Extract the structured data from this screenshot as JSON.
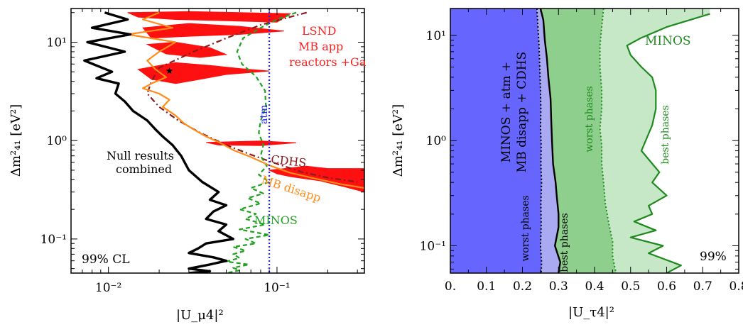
{
  "chart_data": [
    {
      "type": "line",
      "xlabel": "|U_μ4|²",
      "ylabel": "Δm²₄₁ [eV²]",
      "xscale": "log",
      "yscale": "log",
      "xlim": [
        0.006,
        0.33
      ],
      "ylim": [
        0.045,
        22
      ],
      "x_ticks": [
        {
          "v": 0.01,
          "label": "10⁻²"
        },
        {
          "v": 0.1,
          "label": "10⁻¹"
        }
      ],
      "y_ticks": [
        {
          "v": 0.1,
          "label": "10⁻¹"
        },
        {
          "v": 1,
          "label": "10⁰"
        },
        {
          "v": 10,
          "label": "10¹"
        }
      ],
      "cl_label": "99% CL",
      "annotations": {
        "lsnd": [
          "LSND",
          "MB app",
          "reactors +Ga"
        ],
        "null": [
          "Null results",
          "combined"
        ],
        "cdhs": "CDHS",
        "mb_disapp": "MB disapp",
        "minos": "MINOS",
        "atm": "atm"
      },
      "colors": {
        "null": "#000000",
        "mb_disapp": "#ff8c1a",
        "cdhs": "#8b1a1a",
        "minos": "#22a022",
        "atm": "#2222ff",
        "lsnd": "#ff1010"
      },
      "series": [
        {
          "key": "null",
          "x": [
            0.0095,
            0.013,
            0.008,
            0.0135,
            0.0075,
            0.0125,
            0.0072,
            0.0105,
            0.0085,
            0.0115,
            0.011,
            0.0125,
            0.014,
            0.017,
            0.019,
            0.021,
            0.024,
            0.027,
            0.03,
            0.036,
            0.045,
            0.04,
            0.05,
            0.042,
            0.038,
            0.05,
            0.045,
            0.055,
            0.038,
            0.034,
            0.03,
            0.042,
            0.05,
            0.04,
            0.03,
            0.04,
            0.03
          ],
          "y": [
            20,
            17,
            14,
            12,
            10,
            8,
            6.5,
            5,
            4.3,
            3.8,
            3,
            2.5,
            2,
            1.6,
            1.3,
            1.1,
            0.9,
            0.7,
            0.5,
            0.38,
            0.3,
            0.25,
            0.22,
            0.19,
            0.16,
            0.14,
            0.12,
            0.1,
            0.09,
            0.08,
            0.072,
            0.065,
            0.06,
            0.055,
            0.05,
            0.047,
            0.045
          ]
        },
        {
          "key": "mb_disapp",
          "x": [
            0.02,
            0.016,
            0.024,
            0.013,
            0.025,
            0.02,
            0.017,
            0.019,
            0.022,
            0.018,
            0.016,
            0.02,
            0.023,
            0.021,
            0.025,
            0.028,
            0.032,
            0.038,
            0.046,
            0.055,
            0.07,
            0.09,
            0.12,
            0.17,
            0.24,
            0.33
          ],
          "y": [
            20,
            17,
            14,
            12,
            10,
            8,
            6.5,
            5.3,
            4.4,
            3.8,
            3.4,
            3,
            2.6,
            2.2,
            1.8,
            1.5,
            1.3,
            1.1,
            0.95,
            0.8,
            0.68,
            0.56,
            0.47,
            0.41,
            0.36,
            0.33
          ]
        },
        {
          "key": "cdhs",
          "x": [
            0.15,
            0.08,
            0.05,
            0.032,
            0.02,
            0.018,
            0.017,
            0.02,
            0.026,
            0.035,
            0.05,
            0.07,
            0.1,
            0.14,
            0.2,
            0.3
          ],
          "y": [
            20,
            15,
            11,
            8,
            5.5,
            4,
            3,
            2.2,
            1.6,
            1.2,
            0.9,
            0.72,
            0.58,
            0.48,
            0.42,
            0.38
          ]
        },
        {
          "key": "minos",
          "x": [
            0.13,
            0.1,
            0.08,
            0.063,
            0.058,
            0.062,
            0.075,
            0.085,
            0.086,
            0.08,
            0.078,
            0.083,
            0.08,
            0.087,
            0.078,
            0.09,
            0.07,
            0.083,
            0.067,
            0.08,
            0.06,
            0.075,
            0.065,
            0.085,
            0.06,
            0.09,
            0.065,
            0.075,
            0.055,
            0.065,
            0.055,
            0.06,
            0.05,
            0.068,
            0.055,
            0.06,
            0.05
          ],
          "y": [
            20,
            17,
            14,
            11,
            8,
            6,
            4.5,
            3.2,
            2.2,
            1.6,
            1.2,
            0.9,
            0.7,
            0.55,
            0.45,
            0.38,
            0.33,
            0.29,
            0.26,
            0.23,
            0.2,
            0.18,
            0.16,
            0.14,
            0.125,
            0.11,
            0.1,
            0.09,
            0.083,
            0.076,
            0.07,
            0.064,
            0.059,
            0.055,
            0.051,
            0.048,
            0.045
          ]
        },
        {
          "key": "atm",
          "x": [
            0.09,
            0.09
          ],
          "y": [
            22,
            0.045
          ]
        }
      ],
      "lsnd_regions": [
        [
          [
            0.013,
            20
          ],
          [
            0.03,
            20.5
          ],
          [
            0.06,
            20
          ],
          [
            0.12,
            19.5
          ],
          [
            0.1,
            16
          ],
          [
            0.05,
            16.5
          ],
          [
            0.025,
            17
          ],
          [
            0.015,
            18
          ]
        ],
        [
          [
            0.016,
            14
          ],
          [
            0.03,
            15.5
          ],
          [
            0.06,
            14.5
          ],
          [
            0.11,
            13
          ],
          [
            0.06,
            12
          ],
          [
            0.03,
            11.5
          ],
          [
            0.018,
            11
          ]
        ],
        [
          [
            0.017,
            9.5
          ],
          [
            0.025,
            10
          ],
          [
            0.04,
            8.8
          ],
          [
            0.05,
            7.5
          ],
          [
            0.035,
            7
          ],
          [
            0.022,
            7.6
          ]
        ],
        [
          [
            0.015,
            5.3
          ],
          [
            0.025,
            6.2
          ],
          [
            0.04,
            5.8
          ],
          [
            0.06,
            5.4
          ],
          [
            0.09,
            5.1
          ],
          [
            0.05,
            4.7
          ],
          [
            0.035,
            4.2
          ],
          [
            0.025,
            3.8
          ],
          [
            0.018,
            4.2
          ]
        ],
        [
          [
            0.038,
            0.96
          ],
          [
            0.08,
            0.99
          ],
          [
            0.13,
            0.95
          ],
          [
            0.08,
            0.89
          ],
          [
            0.045,
            0.9
          ]
        ],
        [
          [
            0.09,
            0.5
          ],
          [
            0.15,
            0.55
          ],
          [
            0.2,
            0.52
          ],
          [
            0.33,
            0.52
          ],
          [
            0.33,
            0.3
          ],
          [
            0.25,
            0.34
          ],
          [
            0.18,
            0.39
          ],
          [
            0.12,
            0.43
          ],
          [
            0.1,
            0.46
          ]
        ]
      ]
    },
    {
      "type": "area",
      "xlabel": "|U_τ4|²",
      "ylabel": "Δm²₄₁ [eV²]",
      "xscale": "linear",
      "yscale": "log",
      "xlim": [
        0,
        0.8
      ],
      "ylim": [
        0.055,
        18
      ],
      "x_ticks": [
        0,
        0.1,
        0.2,
        0.3,
        0.4,
        0.5,
        0.6,
        0.7,
        0.8
      ],
      "x_tick_labels": [
        "0.",
        "0.1",
        "0.2",
        "0.3",
        "0.4",
        "0.5",
        "0.6",
        "0.7",
        "0.8"
      ],
      "y_ticks": [
        {
          "v": 0.1,
          "label": "10⁻¹"
        },
        {
          "v": 1,
          "label": "10⁰"
        },
        {
          "v": 10,
          "label": "10¹"
        }
      ],
      "cl_label": "99%",
      "annotations": {
        "combined": [
          "MINOS + atm +",
          "MB disapp + CDHS"
        ],
        "minos": "MINOS",
        "worst_phases": "worst  phases",
        "best_phases": "best  phases"
      },
      "colors": {
        "combined_fill": "#6666ff",
        "combined_light": "#aaaaf2",
        "minos_fill": "#8ecf8e",
        "minos_light": "#c6e8c6",
        "minos_line": "#1e8a1e"
      },
      "series": [
        {
          "key": "combined_worst",
          "x": [
            0.24,
            0.243,
            0.246,
            0.248,
            0.25,
            0.251,
            0.25,
            0.252,
            0.251,
            0.253,
            0.251,
            0.252,
            0.25,
            0.253,
            0.252
          ],
          "y": [
            18,
            12,
            8,
            5,
            3,
            2,
            1.3,
            0.9,
            0.6,
            0.4,
            0.25,
            0.16,
            0.1,
            0.07,
            0.055
          ]
        },
        {
          "key": "combined_best",
          "x": [
            0.25,
            0.258,
            0.262,
            0.268,
            0.272,
            0.278,
            0.28,
            0.282,
            0.285,
            0.292,
            0.295,
            0.3,
            0.3,
            0.29,
            0.305,
            0.3
          ],
          "y": [
            18,
            14,
            9,
            6,
            4,
            2.5,
            1.5,
            1,
            0.6,
            0.4,
            0.3,
            0.2,
            0.15,
            0.1,
            0.07,
            0.055
          ]
        },
        {
          "key": "minos_worst",
          "x": [
            0.425,
            0.42,
            0.415,
            0.415,
            0.42,
            0.42,
            0.415,
            0.42,
            0.42,
            0.425,
            0.43,
            0.44,
            0.45,
            0.45,
            0.455,
            0.46
          ],
          "y": [
            18,
            12,
            8,
            5,
            3,
            2,
            1.3,
            0.9,
            0.6,
            0.4,
            0.25,
            0.16,
            0.11,
            0.08,
            0.065,
            0.055
          ]
        },
        {
          "key": "minos_best",
          "x": [
            0.72,
            0.6,
            0.53,
            0.49,
            0.5,
            0.53,
            0.56,
            0.57,
            0.57,
            0.56,
            0.53,
            0.58,
            0.56,
            0.6,
            0.55,
            0.56,
            0.51,
            0.57,
            0.5,
            0.59,
            0.55,
            0.64,
            0.6
          ],
          "y": [
            16,
            12,
            9.5,
            8,
            6.5,
            5,
            4,
            3,
            2,
            1.4,
            0.8,
            0.5,
            0.4,
            0.3,
            0.24,
            0.2,
            0.17,
            0.14,
            0.12,
            0.1,
            0.085,
            0.065,
            0.055
          ]
        }
      ]
    }
  ]
}
